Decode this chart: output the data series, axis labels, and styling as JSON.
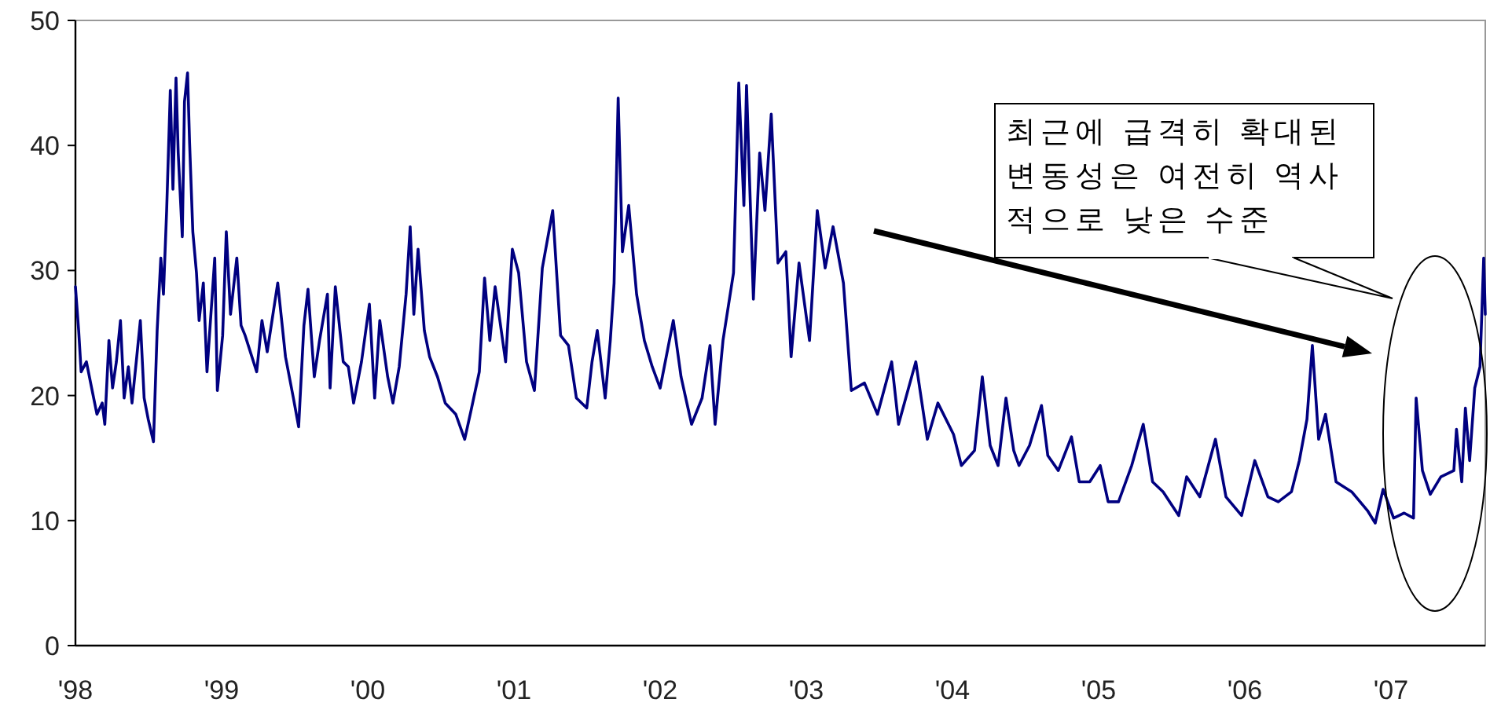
{
  "chart_data": {
    "type": "line",
    "x": [
      1998.0,
      1998.022,
      1998.039,
      1998.075,
      1998.111,
      1998.147,
      1998.183,
      1998.201,
      1998.229,
      1998.254,
      1998.28,
      1998.308,
      1998.333,
      1998.362,
      1998.387,
      1998.416,
      1998.444,
      1998.47,
      1998.498,
      1998.534,
      1998.559,
      1998.584,
      1998.602,
      1998.624,
      1998.649,
      1998.667,
      1998.688,
      1998.703,
      1998.731,
      1998.746,
      1998.767,
      1998.781,
      1998.803,
      1998.828,
      1998.846,
      1998.875,
      1998.9,
      1998.953,
      1998.971,
      1999.007,
      1999.032,
      1999.061,
      1999.104,
      1999.133,
      1999.161,
      1999.24,
      1999.276,
      1999.312,
      1999.384,
      1999.437,
      1999.491,
      1999.527,
      1999.563,
      1999.591,
      1999.634,
      1999.67,
      1999.724,
      1999.742,
      1999.778,
      1999.832,
      1999.867,
      1999.903,
      1999.957,
      2000.011,
      2000.047,
      2000.082,
      2000.136,
      2000.172,
      2000.215,
      2000.262,
      2000.29,
      2000.315,
      2000.344,
      2000.387,
      2000.423,
      2000.477,
      2000.53,
      2000.602,
      2000.663,
      2000.71,
      2000.763,
      2000.799,
      2000.835,
      2000.871,
      2000.943,
      2000.989,
      2001.032,
      2001.086,
      2001.14,
      2001.194,
      2001.265,
      2001.319,
      2001.373,
      2001.427,
      2001.498,
      2001.534,
      2001.57,
      2001.624,
      2001.659,
      2001.685,
      2001.713,
      2001.742,
      2001.785,
      2001.839,
      2001.892,
      2001.946,
      2002.0,
      2002.09,
      2002.143,
      2002.215,
      2002.287,
      2002.341,
      2002.376,
      2002.43,
      2002.502,
      2002.538,
      2002.573,
      2002.591,
      2002.638,
      2002.681,
      2002.717,
      2002.76,
      2002.806,
      2002.86,
      2002.896,
      2002.95,
      2003.022,
      2003.075,
      2003.129,
      2003.183,
      2003.254,
      2003.308,
      2003.398,
      2003.487,
      2003.584,
      2003.631,
      2003.749,
      2003.828,
      2003.9,
      2004.007,
      2004.061,
      2004.151,
      2004.204,
      2004.258,
      2004.312,
      2004.366,
      2004.419,
      2004.455,
      2004.527,
      2004.609,
      2004.652,
      2004.724,
      2004.814,
      2004.867,
      2004.939,
      2005.011,
      2005.065,
      2005.136,
      2005.226,
      2005.305,
      2005.369,
      2005.441,
      2005.548,
      2005.602,
      2005.692,
      2005.799,
      2005.871,
      2005.978,
      2006.068,
      2006.158,
      2006.229,
      2006.319,
      2006.373,
      2006.425,
      2006.462,
      2006.505,
      2006.552,
      2006.624,
      2006.731,
      2006.839,
      2006.892,
      2006.946,
      2007.018,
      2007.09,
      2007.154,
      2007.172,
      2007.215,
      2007.269,
      2007.341,
      2007.43,
      2007.448,
      2007.484,
      2007.509,
      2007.538,
      2007.573,
      2007.609,
      2007.634,
      2007.645
    ],
    "series": [
      {
        "color": "#000080",
        "values": [
          28.7,
          25.2,
          21.9,
          22.7,
          20.6,
          18.5,
          19.4,
          17.7,
          24.4,
          20.6,
          22.7,
          26.0,
          19.8,
          22.3,
          19.4,
          22.7,
          26.0,
          19.8,
          18.1,
          16.3,
          25.2,
          31.0,
          28.1,
          34.8,
          44.4,
          36.5,
          45.4,
          39.4,
          32.7,
          43.5,
          45.8,
          40.2,
          33.1,
          29.8,
          26.0,
          29.0,
          21.9,
          31.0,
          20.4,
          24.8,
          33.1,
          26.5,
          31.0,
          25.6,
          24.8,
          21.9,
          26.0,
          23.5,
          29.0,
          23.1,
          19.8,
          17.5,
          25.6,
          28.5,
          21.5,
          24.4,
          28.1,
          20.6,
          28.7,
          22.7,
          22.3,
          19.4,
          22.7,
          27.3,
          19.8,
          26.0,
          21.5,
          19.4,
          22.3,
          28.1,
          33.5,
          26.5,
          31.7,
          25.2,
          23.1,
          21.5,
          19.4,
          18.5,
          16.5,
          19.0,
          21.9,
          29.4,
          24.4,
          28.7,
          22.7,
          31.7,
          29.8,
          22.7,
          20.4,
          30.2,
          34.8,
          24.8,
          24.0,
          19.8,
          19.0,
          22.7,
          25.2,
          19.8,
          24.4,
          29.0,
          43.8,
          31.5,
          35.2,
          28.1,
          24.4,
          22.3,
          20.6,
          26.0,
          21.5,
          17.7,
          19.8,
          24.0,
          17.7,
          24.4,
          29.8,
          45.0,
          35.2,
          44.8,
          27.7,
          39.4,
          34.8,
          42.5,
          30.6,
          31.5,
          23.1,
          30.6,
          24.4,
          34.8,
          30.2,
          33.5,
          29.0,
          20.4,
          21.0,
          18.5,
          22.7,
          17.7,
          22.7,
          16.5,
          19.4,
          16.9,
          14.4,
          15.6,
          21.5,
          16.0,
          14.4,
          19.8,
          15.6,
          14.4,
          16.0,
          19.2,
          15.2,
          14.0,
          16.7,
          13.1,
          13.1,
          14.4,
          11.5,
          11.5,
          14.4,
          17.7,
          13.1,
          12.3,
          10.4,
          13.5,
          11.9,
          16.5,
          11.9,
          10.4,
          14.8,
          11.9,
          11.5,
          12.3,
          14.8,
          18.1,
          24.0,
          16.5,
          18.5,
          13.1,
          12.3,
          10.8,
          9.8,
          12.5,
          10.2,
          10.6,
          10.2,
          19.8,
          14.0,
          12.1,
          13.5,
          14.0,
          17.3,
          13.1,
          19.0,
          14.8,
          20.6,
          22.3,
          31.0,
          26.5
        ]
      }
    ],
    "xlim": [
      1998,
      2007.645
    ],
    "xticks": [
      {
        "value": 1998,
        "label": "'98"
      },
      {
        "value": 1999,
        "label": "'99"
      },
      {
        "value": 2000,
        "label": "'00"
      },
      {
        "value": 2001,
        "label": "'01"
      },
      {
        "value": 2002,
        "label": "'02"
      },
      {
        "value": 2003,
        "label": "'03"
      },
      {
        "value": 2004,
        "label": "'04"
      },
      {
        "value": 2005,
        "label": "'05"
      },
      {
        "value": 2006,
        "label": "'06"
      },
      {
        "value": 2007,
        "label": "'07"
      }
    ],
    "ylim": [
      0,
      50
    ],
    "yticks": [
      0,
      10,
      20,
      30,
      40,
      50
    ],
    "grid": false,
    "marker": "none",
    "line_style": "solid",
    "annotations": [
      "최근에 급격히 확대된 변동성은 여전히 역사적으로 낮은 수준"
    ]
  }
}
